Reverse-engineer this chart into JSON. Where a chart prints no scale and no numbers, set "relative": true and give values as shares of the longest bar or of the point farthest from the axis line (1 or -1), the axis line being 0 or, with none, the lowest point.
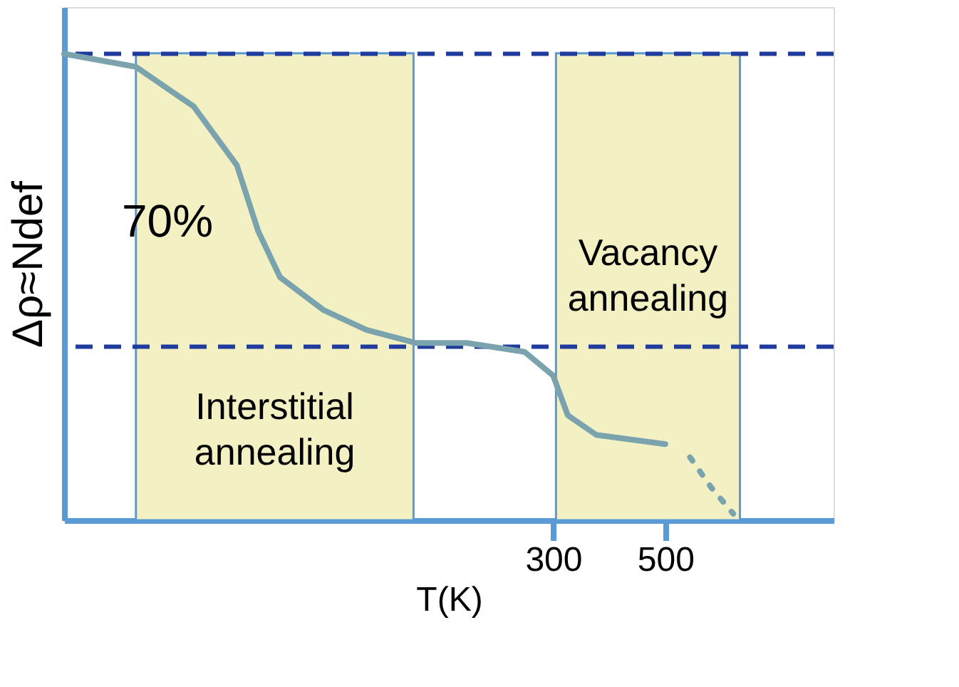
{
  "chart_data": {
    "type": "line",
    "relative": true,
    "xlabel": "T(K)",
    "ylabel": "Δρ≈Ndef",
    "xlim": [
      -572,
      800
    ],
    "xticks": [
      300,
      500
    ],
    "tick_labels": "x",
    "grid": false,
    "marker": "none",
    "series": [
      {
        "color": "#7aa3ad",
        "line_style": "solid",
        "x": [
          -572,
          -444,
          -341,
          -264,
          -226,
          -187,
          -110,
          -33,
          56,
          146,
          249,
          300,
          326,
          377,
          500
        ],
        "values": [
          1,
          0.972,
          0.887,
          0.761,
          0.62,
          0.521,
          0.451,
          0.408,
          0.38,
          0.38,
          0.361,
          0.31,
          0.225,
          0.183,
          0.163
        ]
      },
      {
        "color": "#7aa3ad",
        "line_style": "dotted",
        "x": [
          544,
          582,
          621
        ],
        "values": [
          0.135,
          0.07,
          0.014
        ]
      }
    ],
    "ref_lines": [
      {
        "axis": "y",
        "value": 1,
        "color": "#1f3c9c",
        "line_style": "dashed"
      },
      {
        "axis": "y",
        "value": 0.372,
        "color": "#1f3c9c",
        "line_style": "dashed"
      }
    ],
    "bands": [
      {
        "axis": "x",
        "from": -444,
        "to": 51,
        "label": "Interstitial annealing",
        "color": "#f3f1c4"
      },
      {
        "axis": "x",
        "from": 305,
        "to": 633,
        "label": "Vacancy annealing",
        "color": "#f3f1c4"
      }
    ],
    "annotations": [
      "70%"
    ]
  }
}
